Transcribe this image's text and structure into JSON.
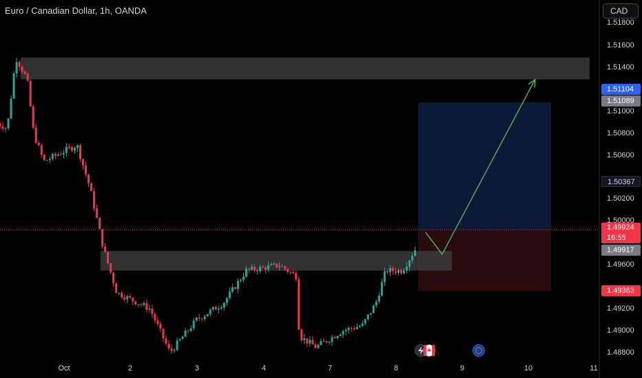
{
  "header": {
    "symbol": "Euro / Canadian Dollar, 1h, OANDA"
  },
  "toolbar": {
    "currency": "CAD"
  },
  "colors": {
    "up": "#26a69a",
    "down": "#f23645",
    "zone": "#3a3a3a",
    "target_area": "#0b1a3a",
    "stop_area": "#2a0b10",
    "arrow": "#4caf50",
    "price_line": "#f23645"
  },
  "price_scale": {
    "ticks": [
      "1.51800",
      "1.51600",
      "1.51400",
      "1.51000",
      "1.50800",
      "1.50600",
      "1.50200",
      "1.50000",
      "1.49600",
      "1.49200",
      "1.49000",
      "1.48800"
    ]
  },
  "price_tags": {
    "tag_1": "1.51104",
    "tag_2": "1.51089",
    "tag_3": "1.50367",
    "current_price": "1.49924",
    "countdown": "16:55",
    "tag_4": "1.49917",
    "tag_5": "1.49363"
  },
  "time_axis": {
    "labels": [
      "Oct",
      "2",
      "3",
      "4",
      "7",
      "8",
      "9",
      "10",
      "11"
    ]
  },
  "events": [
    {
      "icon": "lightning-icon"
    },
    {
      "icon": "canada-flag-icon"
    },
    {
      "icon": "eu-flag-icon"
    }
  ],
  "chart_data": {
    "type": "candlestick",
    "title": "Euro / Canadian Dollar, 1h, OANDA",
    "ylim": [
      1.4875,
      1.5195
    ],
    "x_range": [
      0,
      11
    ],
    "grid": false,
    "key_points": [
      {
        "x": 0.0,
        "y": 1.509
      },
      {
        "x": 0.15,
        "y": 1.5085
      },
      {
        "x": 0.28,
        "y": 1.515
      },
      {
        "x": 0.45,
        "y": 1.513
      },
      {
        "x": 0.55,
        "y": 1.508
      },
      {
        "x": 0.7,
        "y": 1.5055
      },
      {
        "x": 1.2,
        "y": 1.507
      },
      {
        "x": 1.4,
        "y": 1.503
      },
      {
        "x": 1.6,
        "y": 1.4975
      },
      {
        "x": 1.8,
        "y": 1.4935
      },
      {
        "x": 2.3,
        "y": 1.492
      },
      {
        "x": 2.6,
        "y": 1.488
      },
      {
        "x": 3.0,
        "y": 1.491
      },
      {
        "x": 3.4,
        "y": 1.4925
      },
      {
        "x": 3.75,
        "y": 1.4955
      },
      {
        "x": 4.25,
        "y": 1.496
      },
      {
        "x": 4.5,
        "y": 1.495
      },
      {
        "x": 4.55,
        "y": 1.4895
      },
      {
        "x": 4.8,
        "y": 1.4885
      },
      {
        "x": 5.2,
        "y": 1.49
      },
      {
        "x": 5.5,
        "y": 1.4905
      },
      {
        "x": 5.7,
        "y": 1.4925
      },
      {
        "x": 5.85,
        "y": 1.4955
      },
      {
        "x": 6.1,
        "y": 1.4955
      },
      {
        "x": 6.3,
        "y": 1.4975
      },
      {
        "x": 6.33,
        "y": 1.4992
      }
    ],
    "resistance_zone": {
      "from": 1.513,
      "to": 1.515
    },
    "support_zone": {
      "from": 1.4955,
      "to": 1.4973
    },
    "position": {
      "entry": 1.49917,
      "target": 1.51089,
      "stop": 1.49363
    },
    "projection": [
      {
        "x": 6.45,
        "y": 1.499
      },
      {
        "x": 6.7,
        "y": 1.497
      },
      {
        "x": 8.1,
        "y": 1.513
      }
    ]
  }
}
